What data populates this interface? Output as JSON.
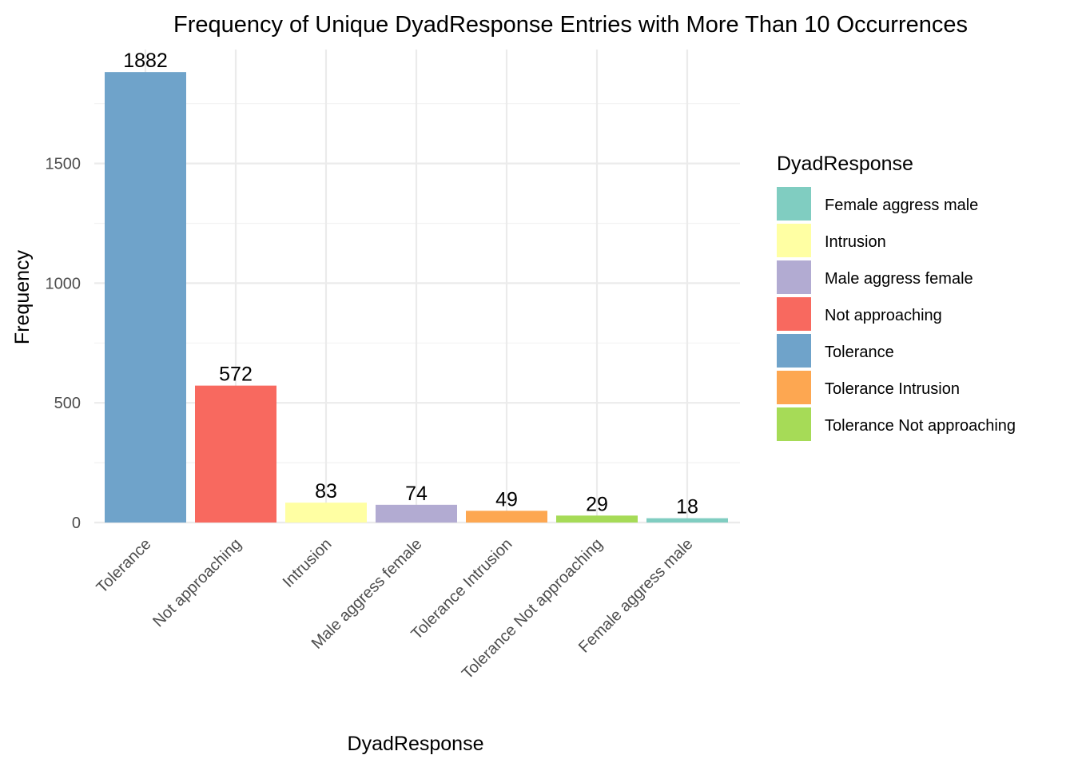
{
  "chart_data": {
    "type": "bar",
    "title": "Frequency of Unique DyadResponse Entries with More Than 10 Occurrences",
    "xlabel": "DyadResponse",
    "ylabel": "Frequency",
    "categories": [
      "Tolerance",
      "Not approaching",
      "Intrusion",
      "Male aggress female",
      "Tolerance Intrusion",
      "Tolerance Not approaching",
      "Female aggress male"
    ],
    "values": [
      1882,
      572,
      83,
      74,
      49,
      29,
      18
    ],
    "colors": [
      "#6fa3ca",
      "#f8695f",
      "#ffffa3",
      "#b2abd2",
      "#fda751",
      "#a6db57",
      "#80cdc1"
    ],
    "ylim": [
      0,
      1976
    ],
    "yticks": [
      0,
      500,
      1000,
      1500
    ],
    "grid": true,
    "legend": {
      "title": "DyadResponse",
      "placement": "right",
      "items": [
        {
          "label": "Female aggress male",
          "color": "#80cdc1"
        },
        {
          "label": "Intrusion",
          "color": "#ffffa3"
        },
        {
          "label": "Male aggress female",
          "color": "#b2abd2"
        },
        {
          "label": "Not approaching",
          "color": "#f8695f"
        },
        {
          "label": "Tolerance",
          "color": "#6fa3ca"
        },
        {
          "label": "Tolerance Intrusion",
          "color": "#fda751"
        },
        {
          "label": "Tolerance Not approaching",
          "color": "#a6db57"
        }
      ]
    }
  }
}
